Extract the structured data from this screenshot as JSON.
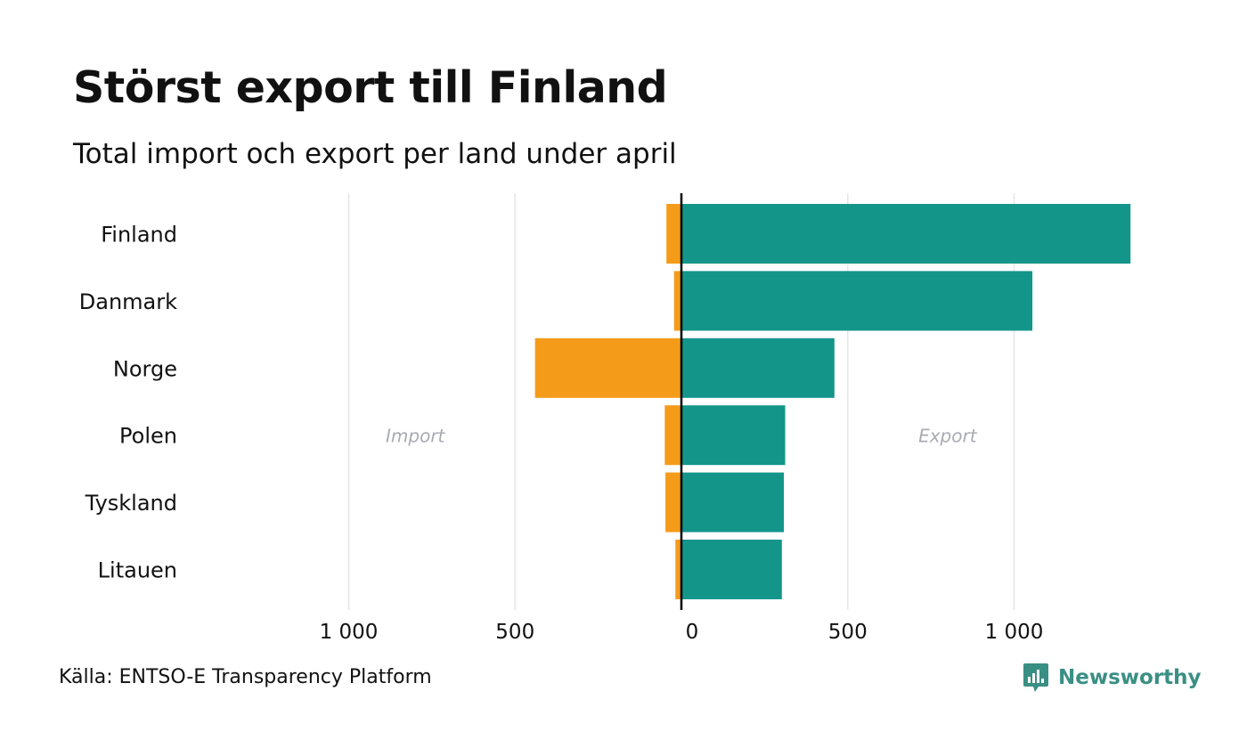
{
  "header": {
    "title": "Störst export till Finland",
    "subtitle": "Total import och export per land under april"
  },
  "footer": {
    "source": "Källa: ENTSO-E Transparency Platform",
    "brand": "Newsworthy"
  },
  "colors": {
    "import": "#f59b1a",
    "export": "#14958a",
    "grid": "#e6e6e6",
    "zero_line": "#000000",
    "annotation": "#a9abb3",
    "brand": "#3a8f84"
  },
  "chart_data": {
    "type": "bar",
    "orientation": "horizontal",
    "categories": [
      "Finland",
      "Danmark",
      "Norge",
      "Polen",
      "Tyskland",
      "Litauen"
    ],
    "series": [
      {
        "key": "import",
        "values": [
          45,
          22,
          440,
          50,
          48,
          18
        ]
      },
      {
        "key": "export",
        "values": [
          1350,
          1055,
          460,
          312,
          308,
          302
        ]
      }
    ],
    "x_ticks": [
      {
        "value": -1000,
        "label": "1 000"
      },
      {
        "value": -500,
        "label": "500"
      },
      {
        "value": 0,
        "label": "0"
      },
      {
        "value": 500,
        "label": "500"
      },
      {
        "value": 1000,
        "label": "1 000"
      }
    ],
    "xlim": [
      -1000,
      1350
    ],
    "grid": true,
    "annotations": {
      "left": "Import",
      "right": "Export"
    },
    "annotation_y_category": "Polen"
  }
}
